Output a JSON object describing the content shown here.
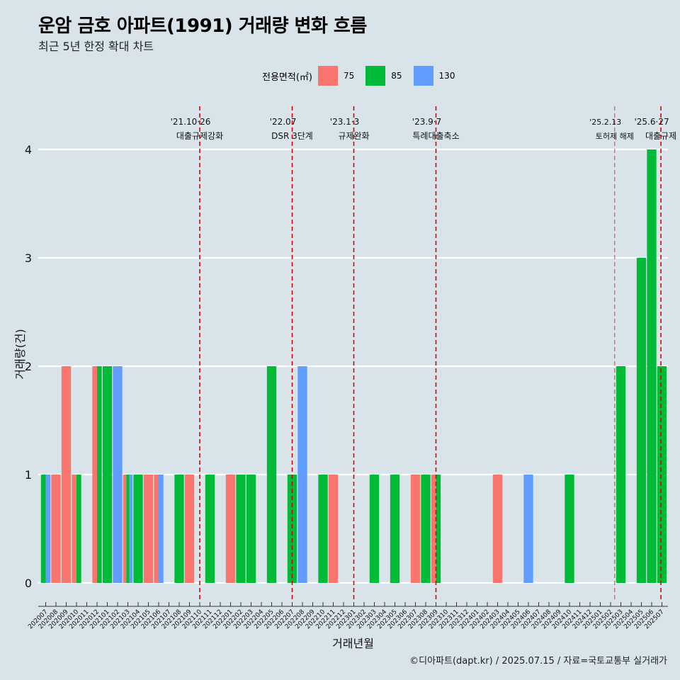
{
  "title": "운암 금호 아파트(1991) 거래량 변화 흐름",
  "subtitle": "최근 5년 한정 확대 차트",
  "caption": "©디아파트(dapt.kr) / 2025.07.15 / 자료=국토교통부 실거래가",
  "legend": {
    "title": "전용면적(㎡)",
    "items": [
      {
        "label": "75",
        "color": "#f8766d"
      },
      {
        "label": "85",
        "color": "#00ba38"
      },
      {
        "label": "130",
        "color": "#619cff"
      }
    ]
  },
  "chart_data": {
    "type": "bar",
    "xlabel": "거래년월",
    "ylabel": "거래량(건)",
    "ylim": [
      0,
      4
    ],
    "yticks": [
      0,
      1,
      2,
      3,
      4
    ],
    "categories": [
      "202007",
      "202008",
      "202009",
      "202010",
      "202011",
      "202012",
      "202101",
      "202102",
      "202103",
      "202104",
      "202105",
      "202106",
      "202107",
      "202108",
      "202109",
      "202110",
      "202111",
      "202112",
      "202201",
      "202202",
      "202203",
      "202204",
      "202205",
      "202206",
      "202207",
      "202208",
      "202209",
      "202210",
      "202211",
      "202212",
      "202301",
      "202302",
      "202303",
      "202304",
      "202305",
      "202306",
      "202307",
      "202308",
      "202309",
      "202310",
      "202311",
      "202312",
      "202401",
      "202402",
      "202403",
      "202404",
      "202405",
      "202406",
      "202407",
      "202408",
      "202409",
      "202410",
      "202411",
      "202412",
      "202501",
      "202502",
      "202503",
      "202504",
      "202505",
      "202506",
      "202507"
    ],
    "series": [
      {
        "name": "75",
        "color": "#f8766d",
        "values": [
          0,
          1,
          2,
          1,
          0,
          2,
          0,
          0,
          1,
          0,
          1,
          1,
          0,
          0,
          1,
          0,
          0,
          0,
          1,
          0,
          0,
          0,
          0,
          0,
          0,
          0,
          0,
          0,
          1,
          0,
          0,
          0,
          0,
          0,
          0,
          0,
          1,
          0,
          1,
          0,
          0,
          0,
          0,
          0,
          1,
          0,
          0,
          0,
          0,
          0,
          0,
          0,
          0,
          0,
          0,
          0,
          0,
          0,
          0,
          0,
          0
        ]
      },
      {
        "name": "85",
        "color": "#00ba38",
        "values": [
          1,
          0,
          0,
          1,
          0,
          2,
          2,
          0,
          1,
          1,
          0,
          0,
          0,
          1,
          0,
          0,
          1,
          0,
          0,
          1,
          1,
          0,
          2,
          0,
          1,
          0,
          0,
          1,
          0,
          0,
          0,
          0,
          1,
          0,
          1,
          0,
          0,
          1,
          1,
          0,
          0,
          0,
          0,
          0,
          0,
          0,
          0,
          0,
          0,
          0,
          0,
          1,
          0,
          0,
          0,
          0,
          2,
          0,
          3,
          4,
          2
        ]
      },
      {
        "name": "130",
        "color": "#619cff",
        "values": [
          1,
          0,
          0,
          0,
          0,
          0,
          0,
          2,
          1,
          0,
          0,
          1,
          0,
          0,
          0,
          0,
          0,
          0,
          0,
          0,
          0,
          0,
          0,
          0,
          0,
          2,
          0,
          0,
          0,
          0,
          0,
          0,
          0,
          0,
          0,
          0,
          0,
          0,
          0,
          0,
          0,
          0,
          0,
          0,
          0,
          0,
          0,
          1,
          0,
          0,
          0,
          0,
          0,
          0,
          0,
          0,
          0,
          0,
          0,
          0,
          0
        ]
      }
    ],
    "annotations": [
      {
        "month": "202110",
        "offset": 0.0,
        "date": "'21.10·26",
        "label": "대출규제강화"
      },
      {
        "month": "202207",
        "offset": 0.0,
        "date": "'22.07",
        "label": "DSR 3단계"
      },
      {
        "month": "202301",
        "offset": 0.0,
        "date": "'23.1·3",
        "label": "규제완화"
      },
      {
        "month": "202309",
        "offset": 0.0,
        "date": "'23.9·7",
        "label": "특례대출축소"
      },
      {
        "month": "202502",
        "offset": 0.4,
        "date": "'25.2.13",
        "label": "토허제 해제",
        "thin": true
      },
      {
        "month": "202506",
        "offset": 0.9,
        "date": "'25.6·27",
        "label": "대출규제"
      }
    ],
    "grid": true,
    "legend_position": "top"
  }
}
